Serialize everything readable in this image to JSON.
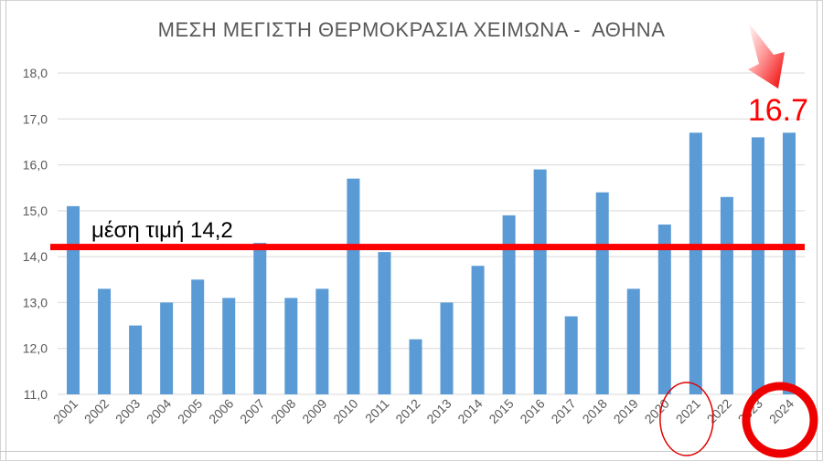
{
  "chart_data": {
    "type": "bar",
    "title": "ΜΕΣΗ ΜΕΓΙΣΤΗ ΘΕΡΜΟΚΡΑΣΙΑ ΧΕΙΜΩΝΑ -  ΑΘΗΝΑ",
    "categories": [
      "2001",
      "2002",
      "2003",
      "2004",
      "2005",
      "2006",
      "2007",
      "2008",
      "2009",
      "2010",
      "2011",
      "2012",
      "2013",
      "2014",
      "2015",
      "2016",
      "2017",
      "2018",
      "2019",
      "2020",
      "2021",
      "2022",
      "2023",
      "2024"
    ],
    "values": [
      15.1,
      13.3,
      12.5,
      13.0,
      13.5,
      13.1,
      14.3,
      13.1,
      13.3,
      15.7,
      14.1,
      12.2,
      13.0,
      13.8,
      14.9,
      15.9,
      12.7,
      15.4,
      13.3,
      14.7,
      16.7,
      15.3,
      16.6,
      16.7
    ],
    "ylim": [
      11.0,
      18.0
    ],
    "yticks": [
      "11,0",
      "12,0",
      "13,0",
      "14,0",
      "15,0",
      "16,0",
      "17,0",
      "18,0"
    ],
    "grid": true,
    "legend": "none",
    "bar_color": "#5b9bd5",
    "annotations": {
      "average_line": {
        "value": 14.2,
        "label": "μέση τιμή 14,2",
        "color": "#ff0000"
      },
      "highlight_value": {
        "label": "16.7",
        "color": "#ff0000"
      },
      "circled_categories": [
        "2021",
        "2024"
      ]
    }
  }
}
